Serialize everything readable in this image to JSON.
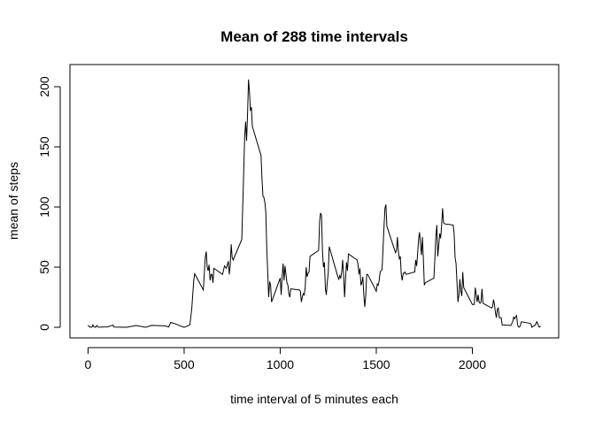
{
  "chart_data": {
    "type": "line",
    "title": "Mean of 288 time intervals",
    "x_label": "time interval of 5 minutes each",
    "y_label": "mean of steps",
    "color": "#000000",
    "x": [
      0,
      10,
      20,
      25,
      30,
      40,
      45,
      55,
      100,
      130,
      135,
      200,
      250,
      300,
      330,
      400,
      420,
      430,
      440,
      450,
      500,
      515,
      530,
      540,
      550,
      555,
      600,
      610,
      615,
      620,
      625,
      630,
      635,
      640,
      645,
      650,
      655,
      700,
      710,
      720,
      730,
      735,
      740,
      745,
      750,
      755,
      800,
      810,
      815,
      820,
      825,
      830,
      835,
      840,
      845,
      850,
      855,
      900,
      905,
      910,
      915,
      920,
      925,
      930,
      935,
      940,
      945,
      950,
      955,
      1000,
      1005,
      1010,
      1015,
      1020,
      1025,
      1030,
      1035,
      1040,
      1045,
      1050,
      1055,
      1100,
      1105,
      1110,
      1115,
      1120,
      1125,
      1130,
      1135,
      1140,
      1145,
      1150,
      1155,
      1200,
      1205,
      1210,
      1215,
      1220,
      1225,
      1230,
      1235,
      1240,
      1245,
      1250,
      1255,
      1300,
      1305,
      1310,
      1315,
      1320,
      1325,
      1330,
      1335,
      1340,
      1345,
      1350,
      1355,
      1400,
      1405,
      1410,
      1415,
      1420,
      1425,
      1430,
      1435,
      1440,
      1445,
      1450,
      1455,
      1500,
      1505,
      1510,
      1515,
      1520,
      1525,
      1530,
      1535,
      1540,
      1545,
      1550,
      1555,
      1600,
      1605,
      1610,
      1615,
      1620,
      1625,
      1630,
      1635,
      1640,
      1645,
      1650,
      1655,
      1700,
      1705,
      1710,
      1715,
      1720,
      1725,
      1730,
      1735,
      1740,
      1745,
      1750,
      1755,
      1800,
      1805,
      1810,
      1815,
      1820,
      1825,
      1830,
      1835,
      1840,
      1845,
      1850,
      1855,
      1900,
      1905,
      1910,
      1915,
      1920,
      1925,
      1930,
      1935,
      1940,
      1945,
      1950,
      1955,
      2000,
      2005,
      2010,
      2015,
      2020,
      2025,
      2030,
      2035,
      2040,
      2045,
      2050,
      2055,
      2100,
      2105,
      2110,
      2115,
      2120,
      2125,
      2130,
      2135,
      2140,
      2145,
      2150,
      2155,
      2200,
      2205,
      2210,
      2215,
      2220,
      2225,
      2230,
      2235,
      2240,
      2245,
      2250,
      2255,
      2300,
      2305,
      2310,
      2315,
      2320,
      2325,
      2330,
      2335,
      2340,
      2345,
      2350,
      2355
    ],
    "values": [
      1.7,
      0.1,
      0.1,
      2.1,
      0.5,
      0,
      1.5,
      0.1,
      0.3,
      1.8,
      0.2,
      0,
      1.5,
      0,
      1.6,
      1.2,
      0.3,
      4.1,
      3.5,
      3.1,
      0,
      1,
      2,
      16,
      39,
      44.5,
      31,
      58,
      63,
      50,
      47,
      52,
      39,
      44,
      44,
      37,
      49,
      44,
      51,
      49,
      55,
      44,
      52,
      69,
      58,
      56,
      73,
      129,
      158,
      171,
      155,
      177,
      206,
      196,
      180,
      183,
      167,
      143,
      124,
      109,
      108,
      104,
      96,
      66,
      46,
      25,
      38,
      35,
      21,
      41,
      27,
      42,
      53,
      39,
      51,
      44,
      37,
      35,
      28,
      25,
      32,
      31,
      30,
      21,
      25,
      28,
      27,
      33,
      50,
      42,
      45,
      46,
      59,
      64,
      88,
      95,
      93,
      63,
      50,
      54,
      32,
      27,
      38,
      45,
      67,
      42,
      40,
      43,
      41,
      46,
      56,
      43,
      25,
      40,
      54,
      47,
      61,
      56,
      52,
      44,
      49,
      35,
      37,
      42,
      27,
      17,
      26,
      44,
      44,
      30,
      36,
      35,
      39,
      46,
      47,
      48,
      65,
      83,
      99,
      102,
      84,
      62,
      64,
      75,
      63,
      57,
      59,
      44,
      39,
      45,
      45,
      46,
      44,
      46,
      56,
      51,
      61,
      73,
      79,
      69,
      60,
      75,
      57,
      35,
      37,
      41,
      58,
      75,
      85,
      59,
      68,
      78,
      74,
      85,
      99,
      87,
      86,
      85,
      78,
      58,
      53,
      37,
      21,
      27,
      40,
      30,
      26,
      46,
      33,
      19,
      19,
      19,
      33,
      27,
      21,
      27,
      21,
      20,
      21,
      32,
      20,
      16,
      17,
      23,
      19,
      12,
      8,
      15,
      16,
      8,
      8,
      8,
      2,
      1.5,
      3,
      4.8,
      8.5,
      7.1,
      8.7,
      9.8,
      2.2,
      0.3,
      0.1,
      1.6,
      4.6,
      3.3,
      2.8,
      0,
      0.8,
      1,
      1.6,
      2.6,
      4.7,
      3.3,
      0.6,
      0.2,
      1.1
    ],
    "xlim": [
      -94.2,
      2449.2
    ],
    "ylim": [
      -8.8,
      218.4
    ],
    "xticks": [
      0,
      500,
      1000,
      1500,
      2000
    ],
    "yticks": [
      0,
      50,
      100,
      150,
      200
    ]
  }
}
